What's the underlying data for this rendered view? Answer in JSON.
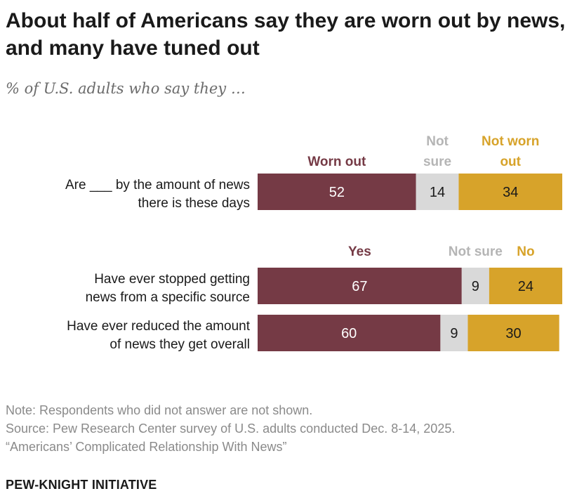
{
  "title": "About half of Americans say they are worn out by news, and many have tuned out",
  "subtitle": "% of U.S. adults who say they …",
  "colors": {
    "primary": "#753a45",
    "unsure": "#d9d9d9",
    "negative": "#d7a32a",
    "primary_text": "#753a45",
    "unsure_text": "#b5b5b5",
    "negative_text": "#d7a32a"
  },
  "chart_data": [
    {
      "type": "bar",
      "stacked": true,
      "orientation": "horizontal",
      "legend": [
        "Worn out",
        "Not sure",
        "Not worn out"
      ],
      "categories": [
        "Are ___ by the amount of news there is these days"
      ],
      "series": [
        {
          "name": "Worn out",
          "values": [
            52
          ]
        },
        {
          "name": "Not sure",
          "values": [
            14
          ]
        },
        {
          "name": "Not worn out",
          "values": [
            34
          ]
        }
      ]
    },
    {
      "type": "bar",
      "stacked": true,
      "orientation": "horizontal",
      "legend": [
        "Yes",
        "Not sure",
        "No"
      ],
      "categories": [
        "Have ever stopped getting news from a specific source",
        "Have ever reduced the amount of news they get overall"
      ],
      "series": [
        {
          "name": "Yes",
          "values": [
            67,
            60
          ]
        },
        {
          "name": "Not sure",
          "values": [
            9,
            9
          ]
        },
        {
          "name": "No",
          "values": [
            24,
            30
          ]
        }
      ]
    }
  ],
  "row_labels": [
    [
      "Are ___ by the amount of news",
      "there is these days"
    ],
    [
      "Have ever stopped getting",
      "news from a specific source"
    ],
    [
      "Have ever reduced the amount",
      "of news they get overall"
    ]
  ],
  "legend_labels": [
    [
      [
        "Worn out"
      ],
      [
        "Not",
        "sure"
      ],
      [
        "Not worn",
        "out"
      ]
    ],
    [
      [
        "Yes"
      ],
      [
        "Not sure"
      ],
      [
        "No"
      ]
    ]
  ],
  "notes": {
    "note": "Note: Respondents who did not answer are not shown.",
    "source": "Source: Pew Research Center survey of U.S. adults conducted Dec. 8-14, 2025.",
    "report": "“Americans’ Complicated Relationship With News”"
  },
  "brand": "PEW-KNIGHT INITIATIVE"
}
